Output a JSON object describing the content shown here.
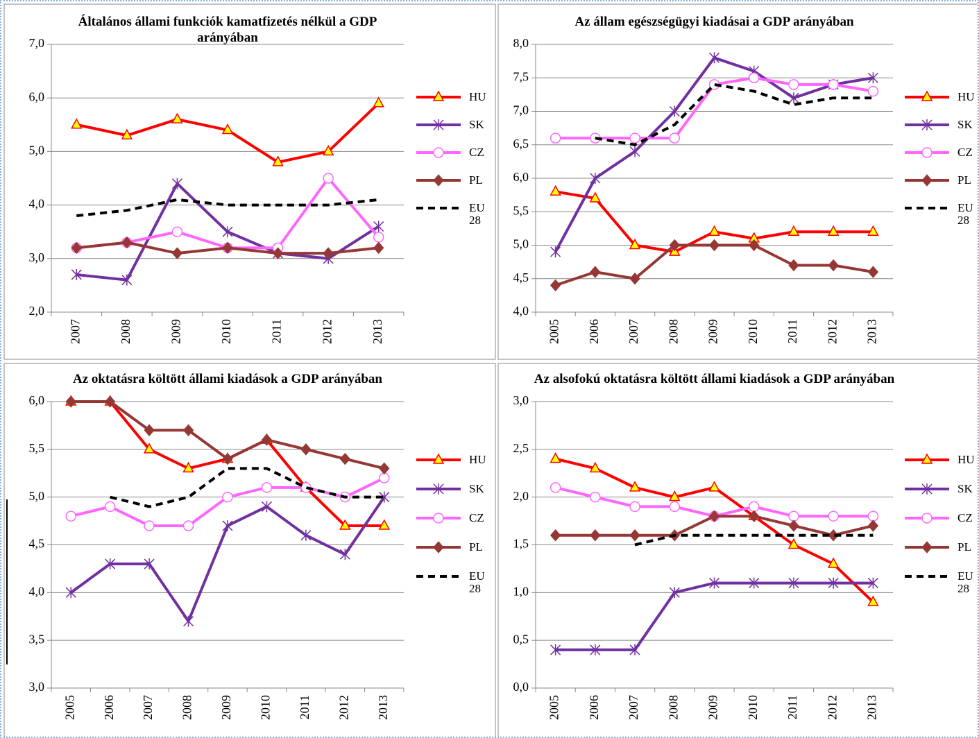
{
  "chart_data": [
    {
      "type": "line",
      "title": "Általános állami funkciók kamatfizetés nélkül a GDP  arányában",
      "categories": [
        "2007",
        "2008",
        "2009",
        "2010",
        "2011",
        "2012",
        "2013"
      ],
      "ylim": [
        2,
        7
      ],
      "yticks": [
        {
          "value": 2,
          "label": "2,0"
        },
        {
          "value": 3,
          "label": "3,0"
        },
        {
          "value": 4,
          "label": "4,0"
        },
        {
          "value": 5,
          "label": "5,0"
        },
        {
          "value": 6,
          "label": "6,0"
        },
        {
          "value": 7,
          "label": "7,0"
        }
      ],
      "grid": true,
      "legend": "right",
      "series": [
        {
          "name": "HU",
          "color": "#ff0000",
          "marker": "triangle",
          "values": [
            5.5,
            5.3,
            5.6,
            5.4,
            4.8,
            5.0,
            5.9
          ]
        },
        {
          "name": "SK",
          "color": "#7030a0",
          "marker": "star",
          "values": [
            2.7,
            2.6,
            4.4,
            3.5,
            3.1,
            3.0,
            3.6
          ]
        },
        {
          "name": "CZ",
          "color": "#ff66ff",
          "marker": "circle",
          "values": [
            3.2,
            3.3,
            3.5,
            3.2,
            3.2,
            4.5,
            3.4
          ]
        },
        {
          "name": "PL",
          "color": "#953735",
          "marker": "diamond",
          "values": [
            3.2,
            3.3,
            3.1,
            3.2,
            3.1,
            3.1,
            3.2
          ]
        },
        {
          "name": "EU 28",
          "color": "#000000",
          "marker": "none",
          "dashed": true,
          "values": [
            3.8,
            3.9,
            4.1,
            4.0,
            4.0,
            4.0,
            4.1
          ]
        }
      ]
    },
    {
      "type": "line",
      "title": "Az állam egészségügyi kiadásai  a GDP  arányában",
      "categories": [
        "2005",
        "2006",
        "2007",
        "2008",
        "2009",
        "2010",
        "2011",
        "2012",
        "2013"
      ],
      "ylim": [
        4,
        8
      ],
      "yticks": [
        {
          "value": 4,
          "label": "4,0"
        },
        {
          "value": 4.5,
          "label": "4,5"
        },
        {
          "value": 5,
          "label": "5,0"
        },
        {
          "value": 5.5,
          "label": "5,5"
        },
        {
          "value": 6,
          "label": "6,0"
        },
        {
          "value": 6.5,
          "label": "6,5"
        },
        {
          "value": 7,
          "label": "7,0"
        },
        {
          "value": 7.5,
          "label": "7,5"
        },
        {
          "value": 8,
          "label": "8,0"
        }
      ],
      "grid": true,
      "legend": "right",
      "series": [
        {
          "name": "HU",
          "color": "#ff0000",
          "marker": "triangle",
          "values": [
            5.8,
            5.7,
            5.0,
            4.9,
            5.2,
            5.1,
            5.2,
            5.2,
            5.2
          ]
        },
        {
          "name": "SK",
          "color": "#7030a0",
          "marker": "star",
          "values": [
            4.9,
            6.0,
            6.4,
            7.0,
            7.8,
            7.6,
            7.2,
            7.4,
            7.5
          ]
        },
        {
          "name": "CZ",
          "color": "#ff66ff",
          "marker": "circle",
          "values": [
            6.6,
            6.6,
            6.6,
            6.6,
            7.4,
            7.5,
            7.4,
            7.4,
            7.3
          ]
        },
        {
          "name": "PL",
          "color": "#953735",
          "marker": "diamond",
          "values": [
            4.4,
            4.6,
            4.5,
            5.0,
            5.0,
            5.0,
            4.7,
            4.7,
            4.6
          ]
        },
        {
          "name": "EU 28",
          "color": "#000000",
          "marker": "none",
          "dashed": true,
          "values": [
            null,
            6.6,
            6.5,
            6.8,
            7.4,
            7.3,
            7.1,
            7.2,
            7.2
          ]
        }
      ]
    },
    {
      "type": "line",
      "title": "Az oktatásra költött állami kiadások a GDP arányában",
      "categories": [
        "2005",
        "2006",
        "2007",
        "2008",
        "2009",
        "2010",
        "2011",
        "2012",
        "2013"
      ],
      "ylim": [
        3,
        6
      ],
      "yticks": [
        {
          "value": 3,
          "label": "3,0"
        },
        {
          "value": 3.5,
          "label": "3,5"
        },
        {
          "value": 4,
          "label": "4,0"
        },
        {
          "value": 4.5,
          "label": "4,5"
        },
        {
          "value": 5,
          "label": "5,0"
        },
        {
          "value": 5.5,
          "label": "5,5"
        },
        {
          "value": 6,
          "label": "6,0"
        }
      ],
      "grid": true,
      "legend": "right",
      "series": [
        {
          "name": "HU",
          "color": "#ff0000",
          "marker": "triangle",
          "values": [
            6.0,
            6.0,
            5.5,
            5.3,
            5.4,
            5.6,
            5.1,
            4.7,
            4.7
          ]
        },
        {
          "name": "SK",
          "color": "#7030a0",
          "marker": "star",
          "values": [
            4.0,
            4.3,
            4.3,
            3.7,
            4.7,
            4.9,
            4.6,
            4.4,
            5.0
          ]
        },
        {
          "name": "CZ",
          "color": "#ff66ff",
          "marker": "circle",
          "values": [
            4.8,
            4.9,
            4.7,
            4.7,
            5.0,
            5.1,
            5.1,
            5.0,
            5.2
          ]
        },
        {
          "name": "PL",
          "color": "#953735",
          "marker": "diamond",
          "values": [
            6.0,
            6.0,
            5.7,
            5.7,
            5.4,
            5.6,
            5.5,
            5.4,
            5.3
          ]
        },
        {
          "name": "EU 28",
          "color": "#000000",
          "marker": "none",
          "dashed": true,
          "values": [
            null,
            5.0,
            4.9,
            5.0,
            5.3,
            5.3,
            5.1,
            5.0,
            5.0
          ]
        }
      ]
    },
    {
      "type": "line",
      "title": "Az alsofokú oktatásra költött állami kiadások a GDP  arányában",
      "categories": [
        "2005",
        "2006",
        "2007",
        "2008",
        "2009",
        "2010",
        "2011",
        "2012",
        "2013"
      ],
      "ylim": [
        0,
        3
      ],
      "yticks": [
        {
          "value": 0,
          "label": "0,0"
        },
        {
          "value": 0.5,
          "label": "0,5"
        },
        {
          "value": 1,
          "label": "1,0"
        },
        {
          "value": 1.5,
          "label": "1,5"
        },
        {
          "value": 2,
          "label": "2,0"
        },
        {
          "value": 2.5,
          "label": "2,5"
        },
        {
          "value": 3,
          "label": "3,0"
        }
      ],
      "grid": true,
      "legend": "right",
      "series": [
        {
          "name": "HU",
          "color": "#ff0000",
          "marker": "triangle",
          "values": [
            2.4,
            2.3,
            2.1,
            2.0,
            2.1,
            1.8,
            1.5,
            1.3,
            0.9
          ]
        },
        {
          "name": "SK",
          "color": "#7030a0",
          "marker": "star",
          "values": [
            0.4,
            0.4,
            0.4,
            1.0,
            1.1,
            1.1,
            1.1,
            1.1,
            1.1
          ]
        },
        {
          "name": "CZ",
          "color": "#ff66ff",
          "marker": "circle",
          "values": [
            2.1,
            2.0,
            1.9,
            1.9,
            1.8,
            1.9,
            1.8,
            1.8,
            1.8
          ]
        },
        {
          "name": "PL",
          "color": "#953735",
          "marker": "diamond",
          "values": [
            1.6,
            1.6,
            1.6,
            1.6,
            1.8,
            1.8,
            1.7,
            1.6,
            1.7
          ]
        },
        {
          "name": "EU 28",
          "color": "#000000",
          "marker": "none",
          "dashed": true,
          "values": [
            null,
            null,
            1.5,
            1.6,
            1.6,
            1.6,
            1.6,
            1.6,
            1.6
          ]
        }
      ]
    }
  ]
}
